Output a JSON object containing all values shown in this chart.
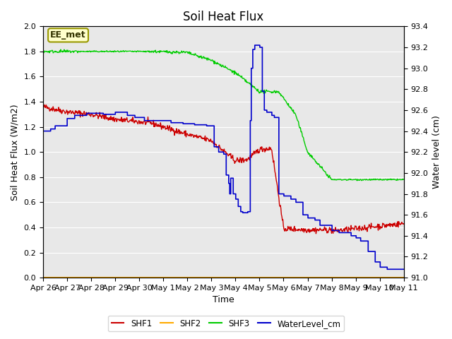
{
  "title": "Soil Heat Flux",
  "xlabel": "Time",
  "ylabel_left": "Soil Heat Flux (W/m2)",
  "ylabel_right": "Water level (cm)",
  "ylim_left": [
    0.0,
    2.0
  ],
  "ylim_right": [
    91.0,
    93.4
  ],
  "bg_color": "#e8e8e8",
  "fig_color": "#ffffff",
  "annotation_text": "EE_met",
  "annotation_bg": "#ffffcc",
  "annotation_border": "#999900",
  "xtick_labels": [
    "Apr 26",
    "Apr 27",
    "Apr 28",
    "Apr 29",
    "Apr 30",
    "May 1",
    "May 2",
    "May 3",
    "May 4",
    "May 5",
    "May 6",
    "May 7",
    "May 8",
    "May 9",
    "May 10",
    "May 11"
  ],
  "shf1_color": "#cc0000",
  "shf2_color": "#ffaa00",
  "shf3_color": "#00cc00",
  "water_color": "#0000cc",
  "legend_labels": [
    "SHF1",
    "SHF2",
    "SHF3",
    "WaterLevel_cm"
  ],
  "grid_color": "#ffffff"
}
